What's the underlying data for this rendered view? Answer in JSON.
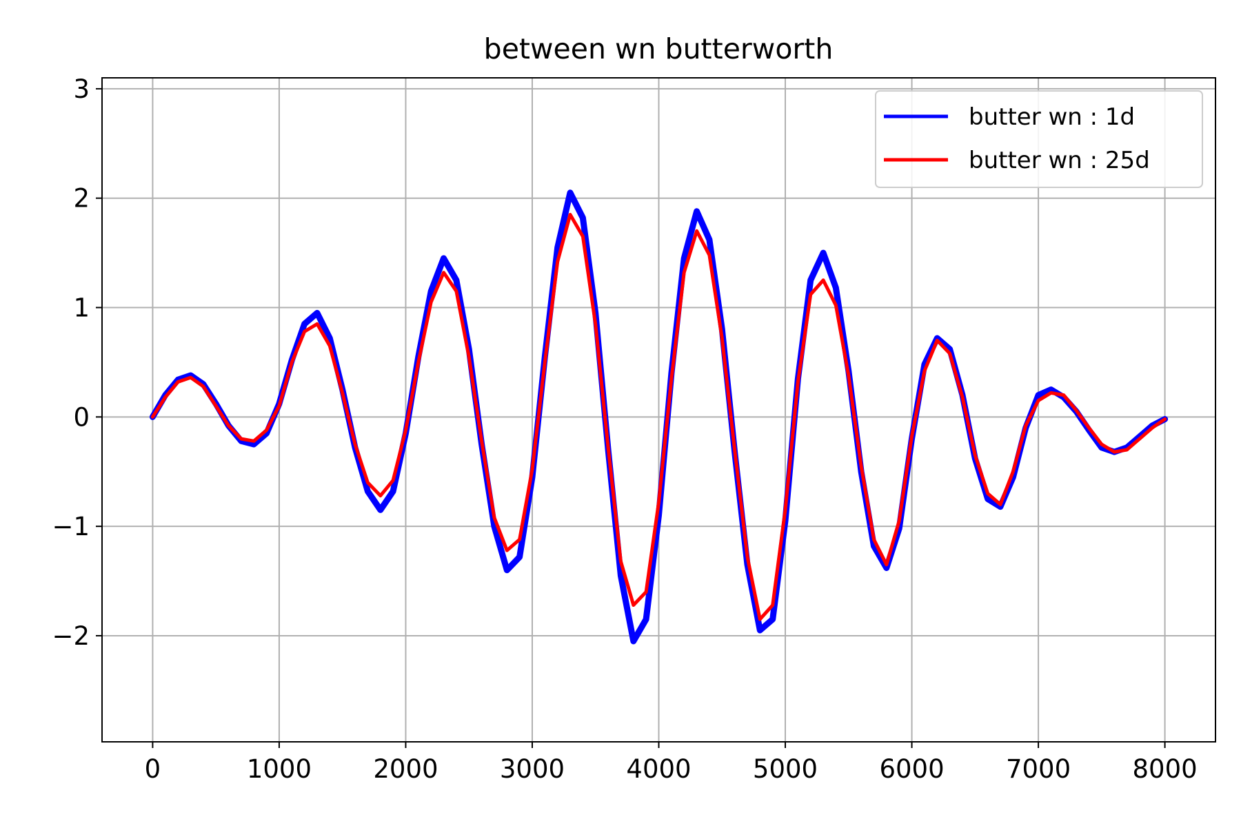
{
  "chart_data": {
    "type": "line",
    "title": "between wn butterworth",
    "xlabel": "",
    "ylabel": "",
    "xlim": [
      -400,
      8400
    ],
    "ylim": [
      -2.97,
      3.1
    ],
    "xticks": [
      0,
      1000,
      2000,
      3000,
      4000,
      5000,
      6000,
      7000,
      8000
    ],
    "xtick_labels": [
      "0",
      "1000",
      "2000",
      "3000",
      "4000",
      "5000",
      "6000",
      "7000",
      "8000"
    ],
    "yticks": [
      -2,
      -1,
      0,
      1,
      2,
      3
    ],
    "ytick_labels": [
      "−2",
      "−1",
      "0",
      "1",
      "2",
      "3"
    ],
    "grid": true,
    "legend_position": "top-right",
    "series": [
      {
        "name": "butter wn : 1d",
        "color": "#0000ff",
        "style": "solid",
        "x": [
          0,
          100,
          200,
          300,
          400,
          500,
          600,
          700,
          800,
          900,
          1000,
          1100,
          1200,
          1300,
          1400,
          1500,
          1600,
          1700,
          1800,
          1900,
          2000,
          2100,
          2200,
          2300,
          2400,
          2500,
          2600,
          2700,
          2800,
          2900,
          3000,
          3100,
          3200,
          3300,
          3400,
          3500,
          3600,
          3700,
          3800,
          3900,
          4000,
          4100,
          4200,
          4300,
          4400,
          4500,
          4600,
          4700,
          4800,
          4900,
          5000,
          5100,
          5200,
          5300,
          5400,
          5500,
          5600,
          5700,
          5800,
          5900,
          6000,
          6100,
          6200,
          6300,
          6400,
          6500,
          6600,
          6700,
          6800,
          6900,
          7000,
          7100,
          7200,
          7300,
          7400,
          7500,
          7600,
          7700,
          7800,
          7900,
          8000
        ],
        "y": [
          0.0,
          0.2,
          0.34,
          0.38,
          0.3,
          0.12,
          -0.08,
          -0.22,
          -0.25,
          -0.15,
          0.12,
          0.52,
          0.85,
          0.95,
          0.72,
          0.25,
          -0.28,
          -0.68,
          -0.85,
          -0.68,
          -0.15,
          0.55,
          1.15,
          1.45,
          1.25,
          0.62,
          -0.25,
          -1.0,
          -1.4,
          -1.28,
          -0.55,
          0.55,
          1.55,
          2.05,
          1.82,
          0.95,
          -0.3,
          -1.45,
          -2.05,
          -1.85,
          -0.9,
          0.4,
          1.45,
          1.88,
          1.62,
          0.8,
          -0.32,
          -1.35,
          -1.95,
          -1.85,
          -0.95,
          0.35,
          1.25,
          1.5,
          1.18,
          0.42,
          -0.5,
          -1.18,
          -1.38,
          -1.02,
          -0.2,
          0.48,
          0.72,
          0.62,
          0.2,
          -0.38,
          -0.75,
          -0.82,
          -0.55,
          -0.1,
          0.2,
          0.25,
          0.18,
          0.05,
          -0.12,
          -0.28,
          -0.32,
          -0.28,
          -0.18,
          -0.08,
          -0.02
        ]
      },
      {
        "name": "butter wn : 25d",
        "color": "#ff0000",
        "style": "solid",
        "x": [
          0,
          100,
          200,
          300,
          400,
          500,
          600,
          700,
          800,
          900,
          1000,
          1100,
          1200,
          1300,
          1400,
          1500,
          1600,
          1700,
          1800,
          1900,
          2000,
          2100,
          2200,
          2300,
          2400,
          2500,
          2600,
          2700,
          2800,
          2900,
          3000,
          3100,
          3200,
          3300,
          3400,
          3500,
          3600,
          3700,
          3800,
          3900,
          4000,
          4100,
          4200,
          4300,
          4400,
          4500,
          4600,
          4700,
          4800,
          4900,
          5000,
          5100,
          5200,
          5300,
          5400,
          5500,
          5600,
          5700,
          5800,
          5900,
          6000,
          6100,
          6200,
          6300,
          6400,
          6500,
          6600,
          6700,
          6800,
          6900,
          7000,
          7100,
          7200,
          7300,
          7400,
          7500,
          7600,
          7700,
          7800,
          7900,
          8000
        ],
        "y": [
          0.0,
          0.18,
          0.32,
          0.36,
          0.28,
          0.1,
          -0.08,
          -0.2,
          -0.22,
          -0.12,
          0.1,
          0.5,
          0.78,
          0.85,
          0.65,
          0.22,
          -0.25,
          -0.6,
          -0.72,
          -0.58,
          -0.12,
          0.5,
          1.05,
          1.32,
          1.15,
          0.55,
          -0.22,
          -0.92,
          -1.22,
          -1.12,
          -0.48,
          0.5,
          1.42,
          1.85,
          1.65,
          0.85,
          -0.28,
          -1.32,
          -1.72,
          -1.6,
          -0.78,
          0.35,
          1.32,
          1.7,
          1.48,
          0.72,
          -0.3,
          -1.28,
          -1.85,
          -1.72,
          -0.85,
          0.32,
          1.12,
          1.25,
          1.02,
          0.38,
          -0.45,
          -1.12,
          -1.35,
          -0.95,
          -0.18,
          0.42,
          0.7,
          0.58,
          0.18,
          -0.35,
          -0.7,
          -0.8,
          -0.5,
          -0.08,
          0.15,
          0.22,
          0.2,
          0.06,
          -0.1,
          -0.25,
          -0.32,
          -0.3,
          -0.2,
          -0.1,
          -0.02
        ]
      }
    ]
  }
}
